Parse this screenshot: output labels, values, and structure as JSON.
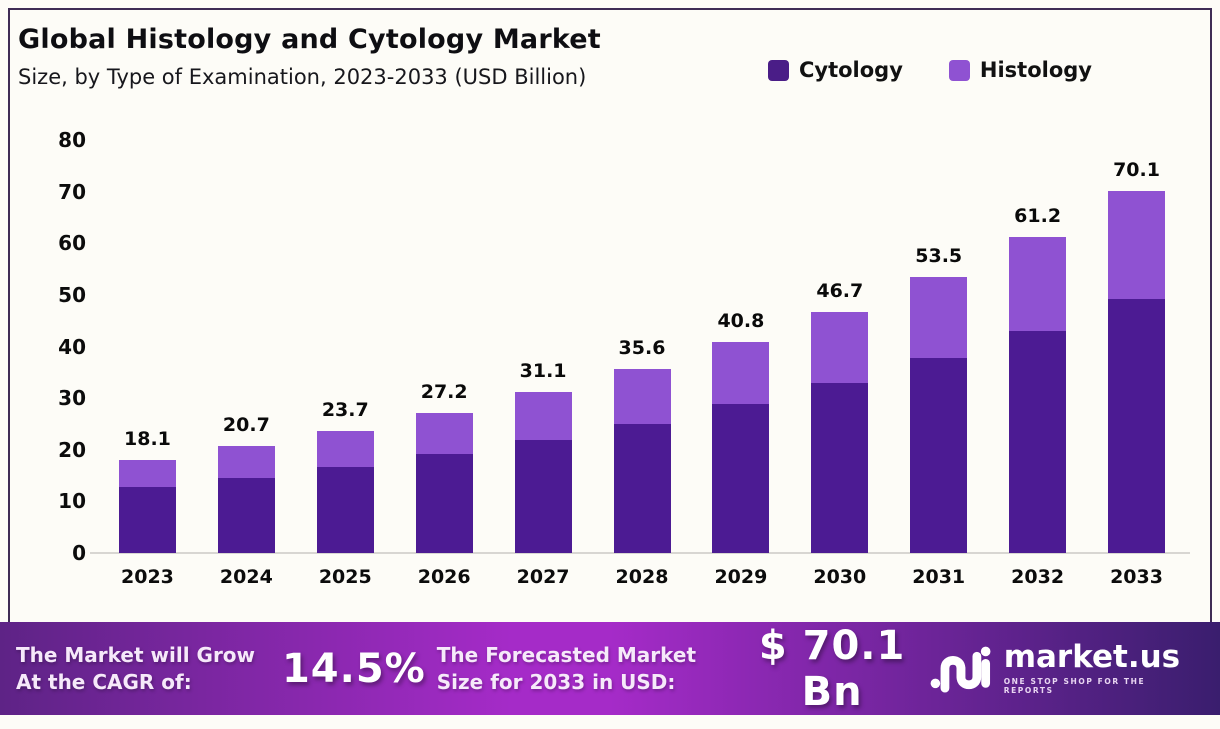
{
  "header": {
    "title": "Global Histology and Cytology Market",
    "subtitle": "Size, by Type of Examination, 2023-2033 (USD Billion)"
  },
  "legend": {
    "items": [
      {
        "label": "Cytology",
        "color": "#4a1d87"
      },
      {
        "label": "Histology",
        "color": "#8f52d2"
      }
    ]
  },
  "chart_data": {
    "type": "bar",
    "stacked": true,
    "title": "Global Histology and Cytology Market Size, by Type of Examination, 2023-2033 (USD Billion)",
    "xlabel": "",
    "ylabel": "",
    "categories": [
      "2023",
      "2024",
      "2025",
      "2026",
      "2027",
      "2028",
      "2029",
      "2030",
      "2031",
      "2032",
      "2033"
    ],
    "series": [
      {
        "name": "Cytology",
        "color": "#4c1b93",
        "values": [
          12.7,
          14.5,
          16.7,
          19.2,
          21.8,
          25.0,
          28.9,
          32.9,
          37.7,
          43.1,
          49.3
        ]
      },
      {
        "name": "Histology",
        "color": "#8f52d2",
        "values": [
          5.4,
          6.2,
          7.0,
          8.0,
          9.3,
          10.6,
          11.9,
          13.8,
          15.8,
          18.1,
          20.8
        ]
      }
    ],
    "totals": [
      18.1,
      20.7,
      23.7,
      27.2,
      31.1,
      35.6,
      40.8,
      46.7,
      53.5,
      61.2,
      70.1
    ],
    "ylim": [
      0,
      80
    ],
    "yticks": [
      0,
      10,
      20,
      30,
      40,
      50,
      60,
      70,
      80
    ],
    "grid": false,
    "legend_position": "top-right"
  },
  "banner": {
    "cagr_label_line1": "The Market will Grow",
    "cagr_label_line2": "At the CAGR of:",
    "cagr_value": "14.5%",
    "forecast_label_line1": "The Forecasted Market",
    "forecast_label_line2": "Size for 2033 in USD:",
    "forecast_value": "$ 70.1 Bn",
    "brand_name": "market.us",
    "brand_tagline": "One Stop Shop For The Reports",
    "gradient": [
      "#5e2386",
      "#a52bc8",
      "#3a1e6e"
    ]
  },
  "colors": {
    "frame_border": "#3f2c55",
    "background": "#fdfcf7",
    "baseline": "#d8d6d2",
    "value_label": "#0a0a0a"
  }
}
